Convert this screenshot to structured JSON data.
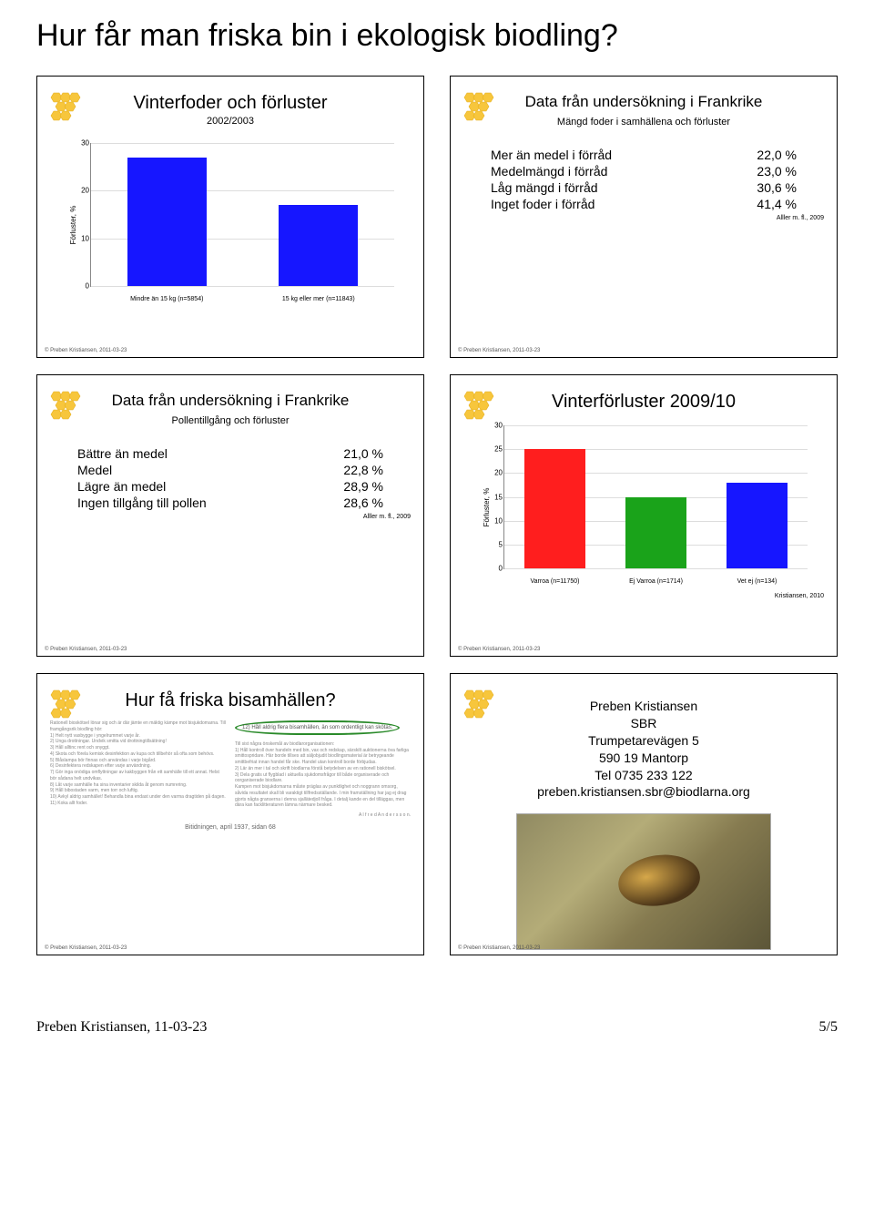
{
  "page_title": "Hur får man friska bin i ekologisk biodling?",
  "footer_left": "Preben Kristiansen, 11-03-23",
  "footer_right": "5/5",
  "slide_footnote": "© Preben Kristiansen, 2011-03-23",
  "citation": "Alller m. fl., 2009",
  "slide1": {
    "title": "Vinterfoder och förluster",
    "subtitle": "2002/2003",
    "chart": {
      "ylabel": "Förluster, %",
      "ylim": [
        0,
        30
      ],
      "ytick_step": 10,
      "categories": [
        "Mindre än 15 kg (n=5854)",
        "15 kg eller mer (n=11843)"
      ],
      "values": [
        27,
        17
      ],
      "bar_color": "#1616ff",
      "grid_color": "#dddddd",
      "axis_color": "#888888",
      "label_fontsize": 8
    }
  },
  "slide2": {
    "title": "Data från undersökning i Frankrike",
    "heading": "Mängd foder i samhällena och förluster",
    "rows": [
      {
        "label": "Mer än medel i förråd",
        "value": "22,0 %"
      },
      {
        "label": "Medelmängd i förråd",
        "value": "23,0 %"
      },
      {
        "label": "Låg mängd i förråd",
        "value": "30,6 %"
      },
      {
        "label": "Inget foder i förråd",
        "value": "41,4 %"
      }
    ]
  },
  "slide3": {
    "title": "Data från undersökning i Frankrike",
    "heading": "Pollentillgång och förluster",
    "rows": [
      {
        "label": "Bättre än medel",
        "value": "21,0 %"
      },
      {
        "label": "Medel",
        "value": "22,8 %"
      },
      {
        "label": "Lägre än medel",
        "value": "28,9 %"
      },
      {
        "label": "Ingen tillgång till pollen",
        "value": "28,6 %"
      }
    ]
  },
  "slide4": {
    "title": "Vinterförluster 2009/10",
    "chart": {
      "ylabel": "Förluster, %",
      "ylim": [
        0,
        30
      ],
      "ytick_step": 5,
      "categories": [
        "Varroa (n=11750)",
        "Ej Varroa (n=1714)",
        "Vet ej (n=134)"
      ],
      "values": [
        25,
        15,
        18
      ],
      "bar_colors": [
        "#ff1e1e",
        "#1aa31a",
        "#1616ff"
      ],
      "grid_color": "#dddddd",
      "axis_color": "#888888",
      "label_fontsize": 8,
      "cite": "Kristiansen, 2010"
    }
  },
  "slide5": {
    "title": "Hur få friska bisamhällen?",
    "circled_text": "12) Håll aldrig flera bisamhällen, än som ordentligt kan skötas.",
    "caption": "Bitidningen, april 1937, sidan 68",
    "author": "A l f r e d   A n d e r s s o n."
  },
  "slide6": {
    "name": "Preben Kristiansen",
    "org": "SBR",
    "addr1": "Trumpetarevägen 5",
    "addr2": "590 19 Mantorp",
    "tel": "Tel 0735 233 122",
    "email": "preben.kristiansen.sbr@biodlarna.org"
  }
}
